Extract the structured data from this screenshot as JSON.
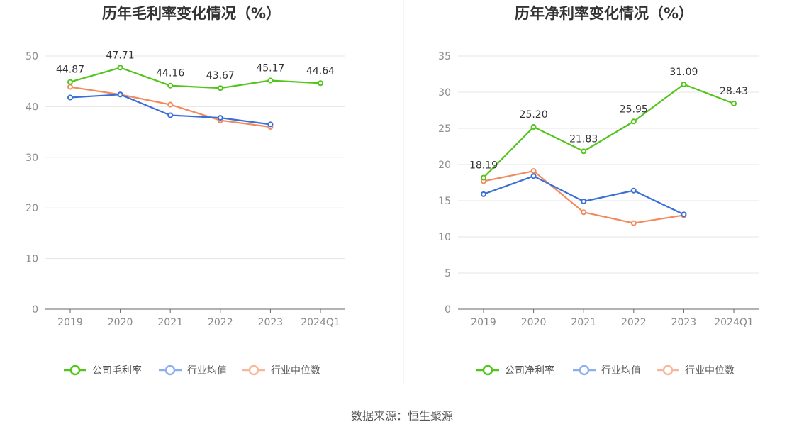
{
  "source": "数据来源：恒生聚源",
  "chart_data": [
    {
      "type": "line",
      "title": "历年毛利率变化情况（%）",
      "categories": [
        "2019",
        "2020",
        "2021",
        "2022",
        "2023",
        "2024Q1"
      ],
      "ylim": [
        0,
        50
      ],
      "yticks": [
        0,
        10,
        20,
        30,
        40,
        50
      ],
      "grid": true,
      "legend_position": "bottom",
      "series": [
        {
          "name": "公司毛利率",
          "color": "#52c41a",
          "values": [
            44.87,
            47.71,
            44.16,
            43.67,
            45.17,
            44.64
          ],
          "labels": [
            "44.87",
            "47.71",
            "44.16",
            "43.67",
            "45.17",
            "44.64"
          ]
        },
        {
          "name": "行业均值",
          "color": "#3a6fd8",
          "values": [
            41.8,
            42.4,
            38.3,
            37.8,
            36.5,
            null
          ]
        },
        {
          "name": "行业中位数",
          "color": "#f28a5e",
          "values": [
            43.9,
            42.4,
            40.4,
            37.3,
            36.0,
            null
          ]
        }
      ]
    },
    {
      "type": "line",
      "title": "历年净利率变化情况（%）",
      "categories": [
        "2019",
        "2020",
        "2021",
        "2022",
        "2023",
        "2024Q1"
      ],
      "ylim": [
        0,
        35
      ],
      "yticks": [
        0,
        5,
        10,
        15,
        20,
        25,
        30,
        35
      ],
      "grid": true,
      "legend_position": "bottom",
      "series": [
        {
          "name": "公司净利率",
          "color": "#52c41a",
          "values": [
            18.19,
            25.2,
            21.83,
            25.95,
            31.09,
            28.43
          ],
          "labels": [
            "18.19",
            "25.20",
            "21.83",
            "25.95",
            "31.09",
            "28.43"
          ]
        },
        {
          "name": "行业均值",
          "color": "#3a6fd8",
          "values": [
            15.9,
            18.4,
            14.9,
            16.4,
            13.1,
            null
          ]
        },
        {
          "name": "行业中位数",
          "color": "#f28a5e",
          "values": [
            17.7,
            19.1,
            13.4,
            11.9,
            13.0,
            null
          ]
        }
      ]
    }
  ]
}
